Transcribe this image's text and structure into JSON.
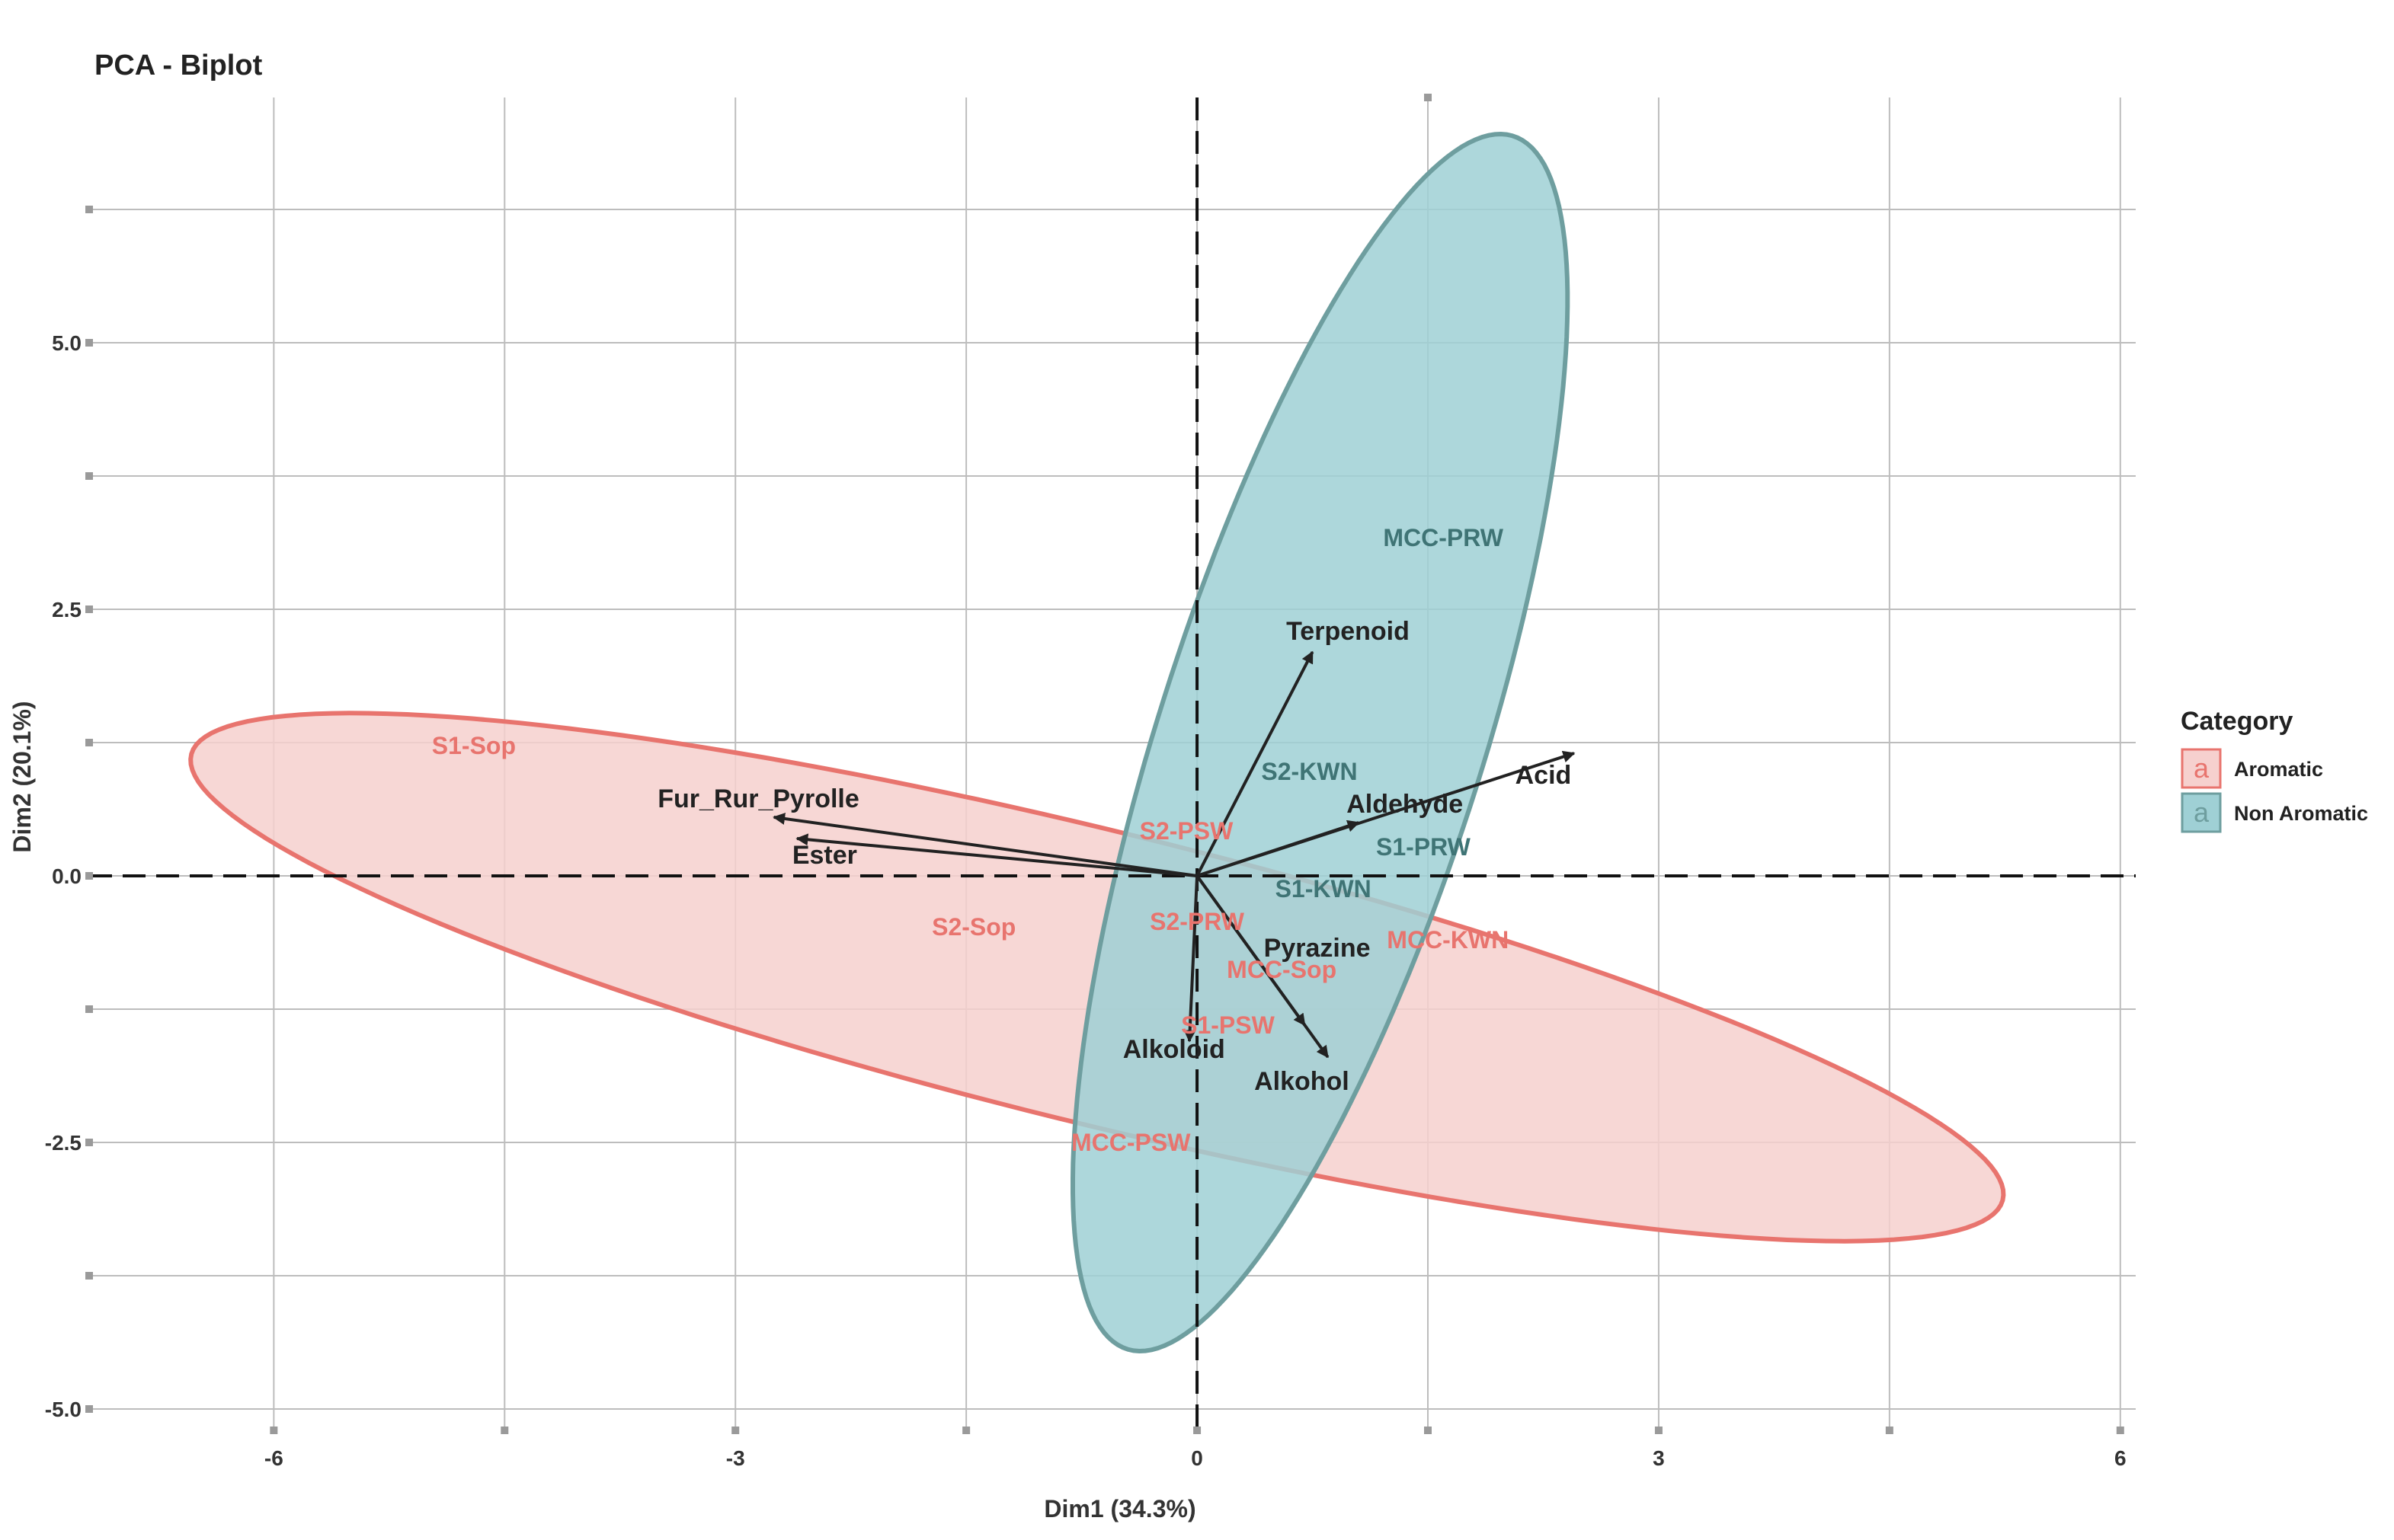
{
  "chart_data": {
    "type": "scatter",
    "title": "PCA - Biplot",
    "xlabel": "Dim1 (34.3%)",
    "ylabel": "Dim2 (20.1%)",
    "xlim": [
      -7.2,
      6.1
    ],
    "ylim": [
      -5.2,
      7.3
    ],
    "x_ticks": [
      {
        "v": -6,
        "label": "-6"
      },
      {
        "v": -3,
        "label": "-3"
      },
      {
        "v": 0,
        "label": "0"
      },
      {
        "v": 3,
        "label": "3"
      },
      {
        "v": 6,
        "label": "6"
      }
    ],
    "x_minor_ticks": [
      -4.5,
      -1.5,
      1.5,
      4.5
    ],
    "y_ticks": [
      {
        "v": 5.0,
        "label": "5.0"
      },
      {
        "v": 2.5,
        "label": "2.5"
      },
      {
        "v": 0.0,
        "label": "0.0"
      },
      {
        "v": -2.5,
        "label": "-2.5"
      },
      {
        "v": -5.0,
        "label": "-5.0"
      }
    ],
    "y_minor_ticks": [
      6.25,
      3.75,
      1.25,
      -1.25,
      -3.75
    ],
    "grid": true,
    "legend": {
      "title": "Category",
      "position": "right",
      "entries": [
        {
          "name": "Aromatic",
          "color": "#E8746E",
          "fill": "#F6D0CE"
        },
        {
          "name": "Non Aromatic",
          "color": "#6E9E9F",
          "fill": "#9FD0D5"
        }
      ]
    },
    "ellipses": [
      {
        "group": "Aromatic",
        "cx": -0.65,
        "cy": -0.95,
        "rx": 6.25,
        "ry": 1.33,
        "angle_deg": -20,
        "fill": "#F6D0CE",
        "stroke": "#E8746E"
      },
      {
        "group": "Non Aromatic",
        "cx": 0.8,
        "cy": 1.25,
        "rx": 5.83,
        "ry": 1.08,
        "angle_deg": 78,
        "fill": "#9FD0D5",
        "stroke": "#6E9E9F"
      }
    ],
    "observations": [
      {
        "label": "S1-Sop",
        "x": -4.7,
        "y": 1.22,
        "group": "Aromatic"
      },
      {
        "label": "S2-Sop",
        "x": -1.45,
        "y": -0.48,
        "group": "Aromatic"
      },
      {
        "label": "S2-PSW",
        "x": -0.07,
        "y": 0.42,
        "group": "Aromatic"
      },
      {
        "label": "S2-PRW",
        "x": 0.0,
        "y": -0.43,
        "group": "Aromatic"
      },
      {
        "label": "MCC-Sop",
        "x": 0.55,
        "y": -0.88,
        "group": "Aromatic"
      },
      {
        "label": "S1-PSW",
        "x": 0.2,
        "y": -1.4,
        "group": "Aromatic"
      },
      {
        "label": "MCC-KWN",
        "x": 1.63,
        "y": -0.6,
        "group": "Aromatic"
      },
      {
        "label": "MCC-PSW",
        "x": -0.43,
        "y": -2.5,
        "group": "Aromatic"
      },
      {
        "label": "MCC-PRW",
        "x": 1.6,
        "y": 3.17,
        "group": "Non Aromatic"
      },
      {
        "label": "S2-KWN",
        "x": 0.73,
        "y": 0.98,
        "group": "Non Aromatic"
      },
      {
        "label": "S1-PRW",
        "x": 1.47,
        "y": 0.27,
        "group": "Non Aromatic"
      },
      {
        "label": "S1-KWN",
        "x": 0.82,
        "y": -0.12,
        "group": "Non Aromatic"
      }
    ],
    "variables": [
      {
        "label": "Terpenoid",
        "x": 0.75,
        "y": 2.1,
        "label_x": 0.98,
        "label_y": 2.3
      },
      {
        "label": "Acid",
        "x": 2.45,
        "y": 1.15,
        "label_x": 2.25,
        "label_y": 0.95
      },
      {
        "label": "Aldehyde",
        "x": 1.05,
        "y": 0.5,
        "label_x": 1.35,
        "label_y": 0.68
      },
      {
        "label": "Fur_Rur_Pyrolle",
        "x": -2.75,
        "y": 0.55,
        "label_x": -2.85,
        "label_y": 0.73
      },
      {
        "label": "Ester",
        "x": -2.6,
        "y": 0.35,
        "label_x": -2.42,
        "label_y": 0.2
      },
      {
        "label": "Pyrazine",
        "x": 0.7,
        "y": -1.4,
        "label_x": 0.78,
        "label_y": -0.67
      },
      {
        "label": "Alkohol",
        "x": 0.85,
        "y": -1.7,
        "label_x": 0.68,
        "label_y": -1.92
      },
      {
        "label": "Alkoloid",
        "x": -0.05,
        "y": -1.55,
        "label_x": -0.15,
        "label_y": -1.62
      }
    ]
  }
}
